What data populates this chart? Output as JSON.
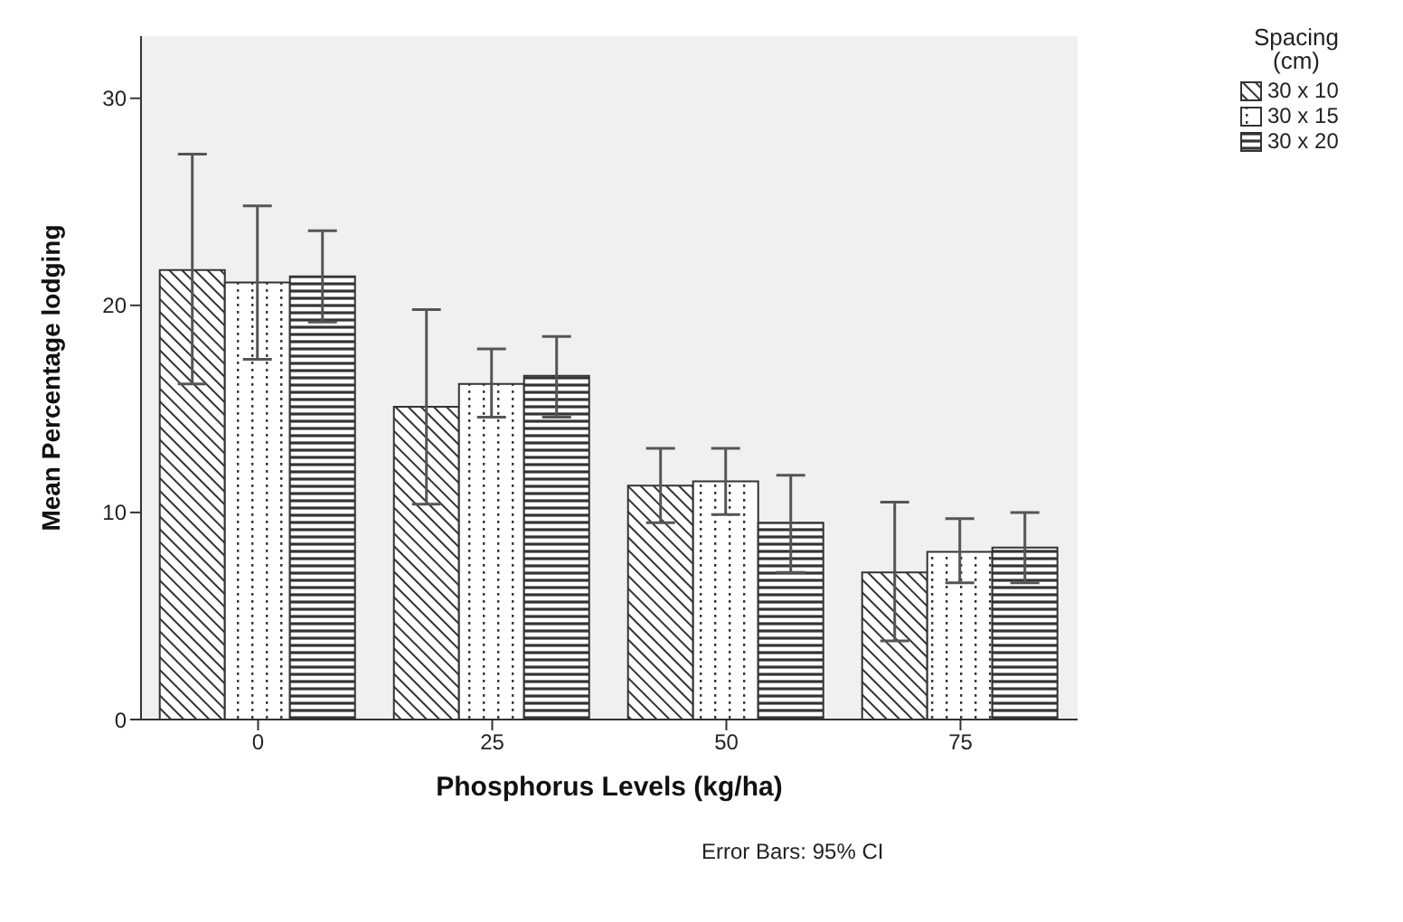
{
  "chart_data": {
    "type": "bar",
    "xlabel": "Phosphorus Levels (kg/ha)",
    "ylabel": "Mean Percentage lodging",
    "legend_title": "Spacing (cm)",
    "annotations": [
      "Error Bars: 95% CI"
    ],
    "categories": [
      "0",
      "25",
      "50",
      "75"
    ],
    "series": [
      {
        "name": "30 x 10",
        "color": "#333333",
        "values": [
          21.7,
          15.1,
          11.3,
          7.1
        ],
        "errors": [
          [
            16.2,
            27.3
          ],
          [
            10.4,
            19.8
          ],
          [
            9.5,
            13.1
          ],
          [
            3.8,
            10.5
          ]
        ]
      },
      {
        "name": "30 x 15",
        "color": "#333333",
        "values": [
          21.1,
          16.2,
          11.5,
          8.1
        ],
        "errors": [
          [
            17.4,
            24.8
          ],
          [
            14.6,
            17.9
          ],
          [
            9.9,
            13.1
          ],
          [
            6.6,
            9.7
          ]
        ]
      },
      {
        "name": "30 x 20",
        "color": "#333333",
        "values": [
          21.4,
          16.6,
          9.5,
          8.3
        ],
        "errors": [
          [
            19.2,
            23.6
          ],
          [
            14.6,
            18.5
          ],
          [
            7.1,
            11.8
          ],
          [
            6.6,
            10.0
          ]
        ]
      }
    ],
    "ylim": [
      0,
      33
    ],
    "yticks": [
      0,
      10,
      20,
      30
    ],
    "grid": false,
    "legend": "top right"
  }
}
